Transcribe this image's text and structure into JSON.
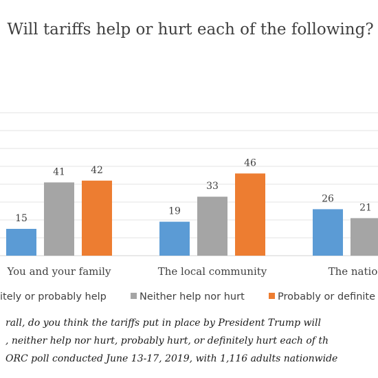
{
  "chart_data": {
    "type": "bar",
    "title": "Will tariffs help or hurt each of the following?",
    "categories": [
      "You and your family",
      "The local community",
      "The national e"
    ],
    "series": [
      {
        "name": "itely or probably help",
        "color": "#5b9bd5",
        "values": [
          15,
          19,
          26
        ]
      },
      {
        "name": "Neither help nor hurt",
        "color": "#a5a5a5",
        "values": [
          41,
          33,
          21
        ]
      },
      {
        "name": "Probably or definite",
        "color": "#ed7d31",
        "values": [
          42,
          46,
          null
        ]
      }
    ],
    "ylim": [
      0,
      80
    ],
    "grid": true,
    "legend_position": "bottom"
  },
  "note_lines": [
    "rall, do you think the tariffs put in place by President Trump will",
    ", neither help nor hurt, probably hurt, or definitely hurt each of th",
    "ORC poll conducted June 13-17, 2019, with 1,116 adults nationwide"
  ]
}
